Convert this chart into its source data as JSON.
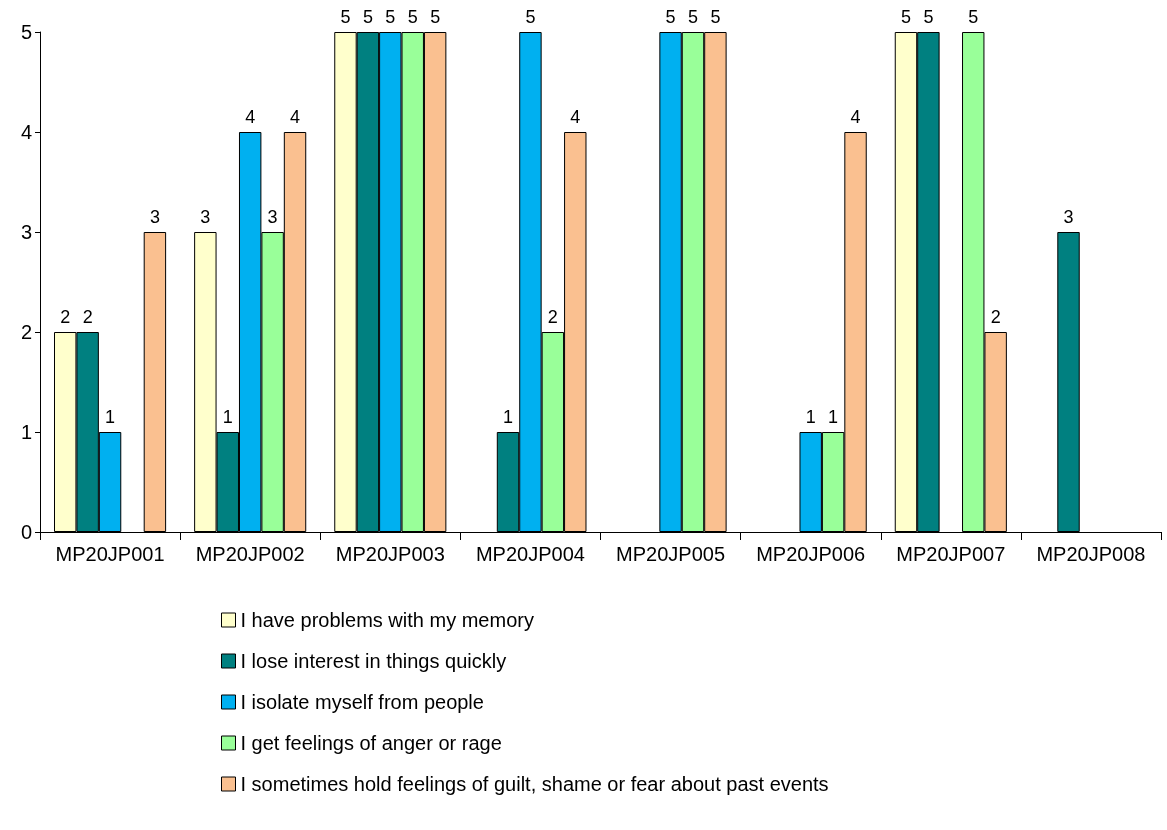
{
  "chart_data": {
    "type": "bar",
    "categories": [
      "MP20JP001",
      "MP20JP002",
      "MP20JP003",
      "MP20JP004",
      "MP20JP005",
      "MP20JP006",
      "MP20JP007",
      "MP20JP008"
    ],
    "series": [
      {
        "name": "I have problems with my memory",
        "color": "#ffffcc",
        "values": [
          2,
          3,
          5,
          null,
          null,
          null,
          5,
          null
        ]
      },
      {
        "name": "I lose interest in things quickly",
        "color": "#008080",
        "values": [
          2,
          1,
          5,
          1,
          null,
          null,
          5,
          3
        ]
      },
      {
        "name": "I isolate myself from people",
        "color": "#00b0f0",
        "values": [
          1,
          4,
          5,
          5,
          5,
          1,
          null,
          null
        ]
      },
      {
        "name": "I get feelings of anger or rage",
        "color": "#99ff99",
        "values": [
          null,
          3,
          5,
          2,
          5,
          1,
          5,
          null
        ]
      },
      {
        "name": "I sometimes hold feelings of guilt, shame or fear about past events",
        "color": "#fac090",
        "values": [
          3,
          4,
          5,
          4,
          5,
          4,
          2,
          null
        ]
      }
    ],
    "ylim": [
      0,
      5
    ],
    "yticks": [
      0,
      1,
      2,
      3,
      4,
      5
    ],
    "grid": false,
    "legend": "bottom",
    "data_labels": true
  }
}
